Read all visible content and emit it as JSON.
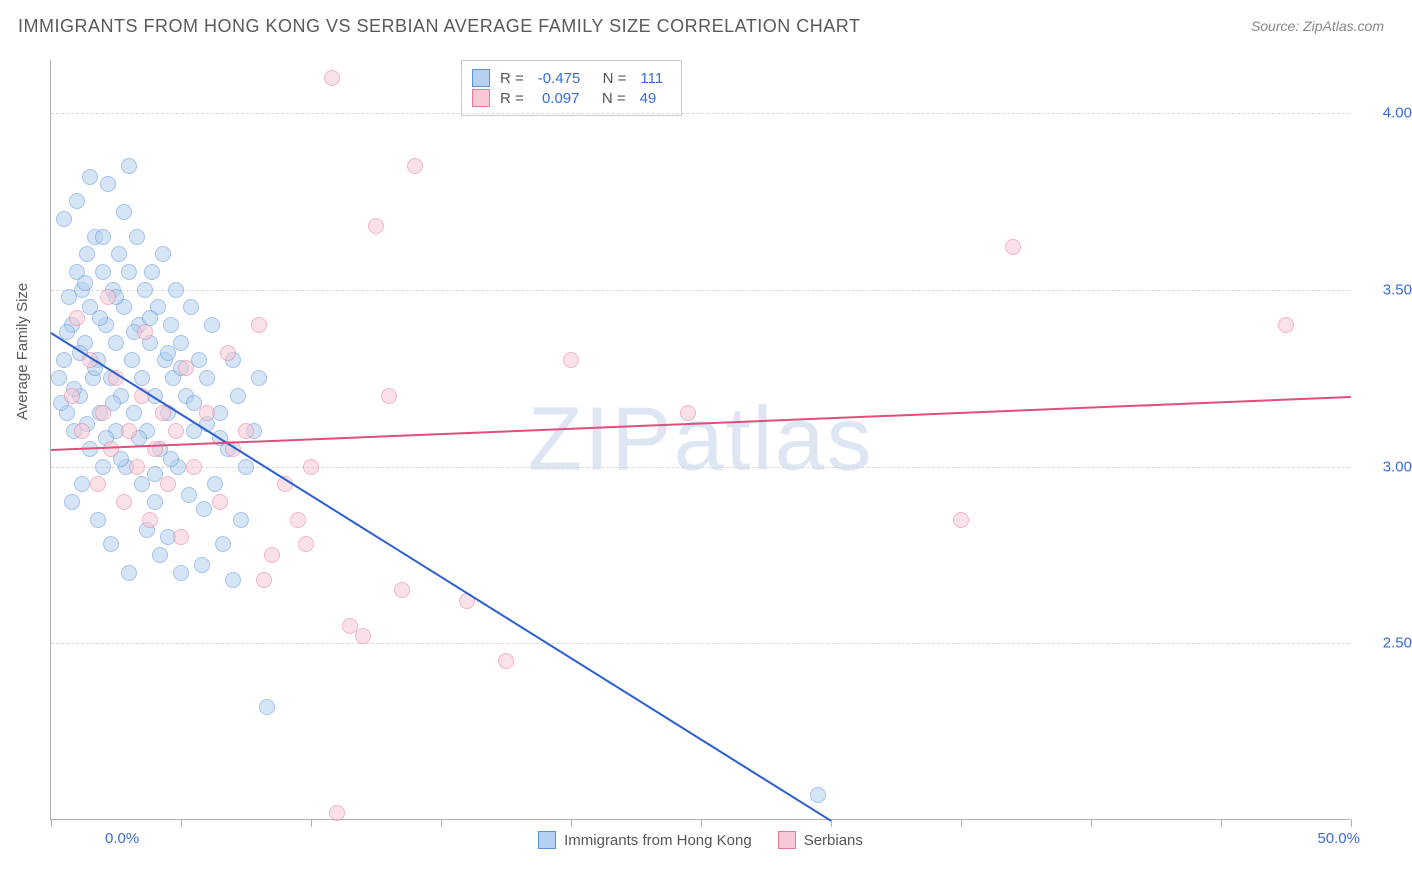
{
  "title": "IMMIGRANTS FROM HONG KONG VS SERBIAN AVERAGE FAMILY SIZE CORRELATION CHART",
  "source": "Source: ZipAtlas.com",
  "watermark": "ZIPatlas",
  "chart": {
    "type": "scatter",
    "background_color": "#ffffff",
    "grid_color": "#d8d8d8",
    "border_color": "#b0b0b0",
    "axis_label_color": "#3b6bd6",
    "text_color": "#5a5a5a",
    "y_axis": {
      "title": "Average Family Size",
      "min": 2.0,
      "max": 4.15,
      "ticks": [
        2.5,
        3.0,
        3.5,
        4.0
      ],
      "tick_labels": [
        "2.50",
        "3.00",
        "3.50",
        "4.00"
      ],
      "label_fontsize": 15
    },
    "x_axis": {
      "min": 0.0,
      "max": 50.0,
      "label_left": "0.0%",
      "label_right": "50.0%",
      "tick_positions": [
        0,
        5,
        10,
        15,
        20,
        25,
        30,
        35,
        40,
        45,
        50
      ]
    },
    "series": [
      {
        "name": "Immigrants from Hong Kong",
        "color_fill": "#b5d0f0",
        "color_stroke": "#5a93d6",
        "marker_radius": 8,
        "fill_opacity": 0.55,
        "R": "-0.475",
        "N": "111",
        "trendline": {
          "x1": 0.0,
          "y1": 3.38,
          "x2": 30.0,
          "y2": 2.0,
          "color": "#2a5fcf",
          "width": 2
        },
        "points": [
          [
            0.3,
            3.25
          ],
          [
            0.5,
            3.3
          ],
          [
            0.6,
            3.15
          ],
          [
            0.8,
            3.4
          ],
          [
            0.9,
            3.1
          ],
          [
            1.0,
            3.55
          ],
          [
            1.1,
            3.2
          ],
          [
            1.2,
            3.5
          ],
          [
            1.3,
            3.35
          ],
          [
            1.4,
            3.6
          ],
          [
            1.5,
            3.05
          ],
          [
            1.5,
            3.45
          ],
          [
            1.6,
            3.25
          ],
          [
            1.7,
            3.65
          ],
          [
            1.8,
            3.3
          ],
          [
            1.9,
            3.15
          ],
          [
            2.0,
            3.55
          ],
          [
            2.0,
            3.0
          ],
          [
            2.1,
            3.4
          ],
          [
            2.2,
            3.8
          ],
          [
            2.3,
            3.25
          ],
          [
            2.4,
            3.5
          ],
          [
            2.5,
            3.1
          ],
          [
            2.5,
            3.35
          ],
          [
            2.6,
            3.6
          ],
          [
            2.7,
            3.2
          ],
          [
            2.8,
            3.45
          ],
          [
            2.9,
            3.0
          ],
          [
            3.0,
            3.55
          ],
          [
            3.0,
            3.85
          ],
          [
            3.1,
            3.3
          ],
          [
            3.2,
            3.15
          ],
          [
            3.3,
            3.65
          ],
          [
            3.4,
            3.4
          ],
          [
            3.5,
            3.25
          ],
          [
            3.5,
            2.95
          ],
          [
            3.6,
            3.5
          ],
          [
            3.7,
            3.1
          ],
          [
            3.8,
            3.35
          ],
          [
            3.9,
            3.55
          ],
          [
            4.0,
            3.2
          ],
          [
            4.0,
            2.9
          ],
          [
            4.1,
            3.45
          ],
          [
            4.2,
            3.05
          ],
          [
            4.3,
            3.6
          ],
          [
            4.4,
            3.3
          ],
          [
            4.5,
            3.15
          ],
          [
            4.5,
            2.8
          ],
          [
            4.6,
            3.4
          ],
          [
            4.7,
            3.25
          ],
          [
            4.8,
            3.5
          ],
          [
            4.9,
            3.0
          ],
          [
            5.0,
            3.35
          ],
          [
            5.0,
            2.7
          ],
          [
            5.2,
            3.2
          ],
          [
            5.4,
            3.45
          ],
          [
            5.5,
            3.1
          ],
          [
            5.7,
            3.3
          ],
          [
            5.8,
            2.72
          ],
          [
            6.0,
            3.25
          ],
          [
            6.2,
            3.4
          ],
          [
            6.3,
            2.95
          ],
          [
            6.5,
            3.15
          ],
          [
            6.8,
            3.05
          ],
          [
            7.0,
            3.3
          ],
          [
            7.0,
            2.68
          ],
          [
            7.2,
            3.2
          ],
          [
            7.5,
            3.0
          ],
          [
            7.8,
            3.1
          ],
          [
            8.0,
            3.25
          ],
          [
            8.3,
            2.32
          ],
          [
            0.8,
            2.9
          ],
          [
            1.2,
            2.95
          ],
          [
            1.8,
            2.85
          ],
          [
            2.3,
            2.78
          ],
          [
            3.0,
            2.7
          ],
          [
            3.7,
            2.82
          ],
          [
            4.2,
            2.75
          ],
          [
            0.5,
            3.7
          ],
          [
            1.0,
            3.75
          ],
          [
            1.5,
            3.82
          ],
          [
            2.0,
            3.65
          ],
          [
            2.8,
            3.72
          ],
          [
            0.7,
            3.48
          ],
          [
            1.3,
            3.52
          ],
          [
            1.9,
            3.42
          ],
          [
            2.5,
            3.48
          ],
          [
            3.2,
            3.38
          ],
          [
            3.8,
            3.42
          ],
          [
            4.5,
            3.32
          ],
          [
            5.0,
            3.28
          ],
          [
            5.5,
            3.18
          ],
          [
            6.0,
            3.12
          ],
          [
            6.5,
            3.08
          ],
          [
            0.4,
            3.18
          ],
          [
            0.9,
            3.22
          ],
          [
            1.4,
            3.12
          ],
          [
            2.1,
            3.08
          ],
          [
            2.7,
            3.02
          ],
          [
            3.4,
            3.08
          ],
          [
            4.0,
            2.98
          ],
          [
            4.6,
            3.02
          ],
          [
            5.3,
            2.92
          ],
          [
            5.9,
            2.88
          ],
          [
            6.6,
            2.78
          ],
          [
            7.3,
            2.85
          ],
          [
            0.6,
            3.38
          ],
          [
            1.1,
            3.32
          ],
          [
            1.7,
            3.28
          ],
          [
            2.4,
            3.18
          ],
          [
            29.5,
            2.07
          ]
        ]
      },
      {
        "name": "Serbians",
        "color_fill": "#f7c9d4",
        "color_stroke": "#e77a99",
        "marker_radius": 8,
        "fill_opacity": 0.55,
        "R": "0.097",
        "N": "49",
        "trendline": {
          "x1": 0.0,
          "y1": 3.05,
          "x2": 50.0,
          "y2": 3.2,
          "color": "#e04e7a",
          "width": 2
        },
        "points": [
          [
            0.8,
            3.2
          ],
          [
            1.2,
            3.1
          ],
          [
            1.5,
            3.3
          ],
          [
            1.8,
            2.95
          ],
          [
            2.0,
            3.15
          ],
          [
            2.3,
            3.05
          ],
          [
            2.5,
            3.25
          ],
          [
            2.8,
            2.9
          ],
          [
            3.0,
            3.1
          ],
          [
            3.3,
            3.0
          ],
          [
            3.5,
            3.2
          ],
          [
            3.8,
            2.85
          ],
          [
            4.0,
            3.05
          ],
          [
            4.3,
            3.15
          ],
          [
            4.5,
            2.95
          ],
          [
            4.8,
            3.1
          ],
          [
            5.0,
            2.8
          ],
          [
            5.5,
            3.0
          ],
          [
            6.0,
            3.15
          ],
          [
            6.5,
            2.9
          ],
          [
            7.0,
            3.05
          ],
          [
            7.5,
            3.1
          ],
          [
            8.0,
            3.4
          ],
          [
            8.5,
            2.75
          ],
          [
            9.0,
            2.95
          ],
          [
            9.5,
            2.85
          ],
          [
            10.0,
            3.0
          ],
          [
            10.8,
            4.1
          ],
          [
            11.0,
            2.02
          ],
          [
            11.5,
            2.55
          ],
          [
            12.0,
            2.52
          ],
          [
            12.5,
            3.68
          ],
          [
            13.0,
            3.2
          ],
          [
            13.5,
            2.65
          ],
          [
            14.0,
            3.85
          ],
          [
            16.0,
            2.62
          ],
          [
            17.5,
            2.45
          ],
          [
            20.0,
            3.3
          ],
          [
            24.5,
            3.15
          ],
          [
            35.0,
            2.85
          ],
          [
            37.0,
            3.62
          ],
          [
            47.5,
            3.4
          ],
          [
            1.0,
            3.42
          ],
          [
            2.2,
            3.48
          ],
          [
            3.6,
            3.38
          ],
          [
            5.2,
            3.28
          ],
          [
            6.8,
            3.32
          ],
          [
            8.2,
            2.68
          ],
          [
            9.8,
            2.78
          ]
        ]
      }
    ]
  },
  "bottom_legend": [
    {
      "label": "Immigrants from Hong Kong",
      "fill": "#b5d0f0",
      "stroke": "#5a93d6"
    },
    {
      "label": "Serbians",
      "fill": "#f7c9d4",
      "stroke": "#e77a99"
    }
  ]
}
